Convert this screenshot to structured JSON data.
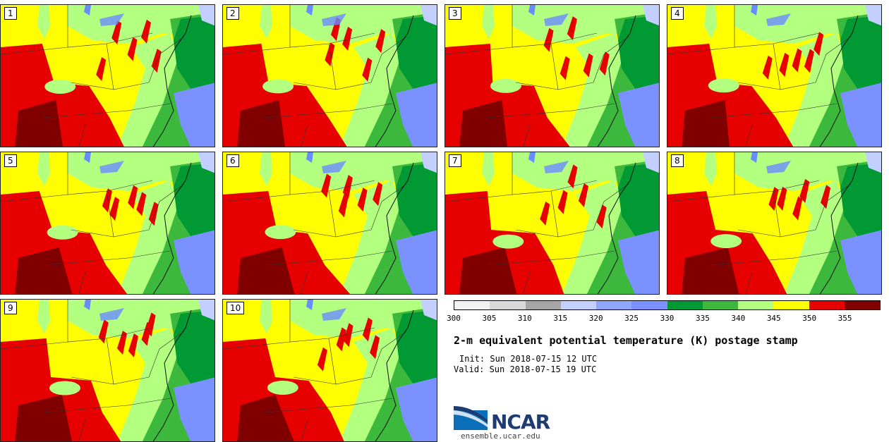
{
  "title": "2-m equivalent potential temperature (K) postage stamp",
  "init_text": "Init: Sun 2018-07-15 12 UTC",
  "valid_text": "Valid: Sun 2018-07-15 19 UTC",
  "logo_text": "NCAR",
  "website": "ensemble.ucar.edu",
  "members": [
    "1",
    "2",
    "3",
    "4",
    "5",
    "6",
    "7",
    "8",
    "9",
    "10"
  ],
  "colorbar": {
    "ticks": [
      "300",
      "305",
      "310",
      "315",
      "320",
      "325",
      "330",
      "335",
      "340",
      "345",
      "350",
      "355"
    ],
    "colors": [
      "#f2f2f2",
      "#d9d9d9",
      "#a6a6a6",
      "#c2cfff",
      "#8fa6ff",
      "#7b91ff",
      "#009933",
      "#3cb83c",
      "#b3ff80",
      "#ffff00",
      "#e60000",
      "#800000"
    ]
  },
  "map_colors": {
    "yellow": "#ffff00",
    "red": "#e60000",
    "darkred": "#800000",
    "lightgreen": "#b3ff80",
    "green": "#3cb83c",
    "darkgreen": "#009933",
    "blue": "#7b91ff",
    "lake": "#6a8cff"
  }
}
